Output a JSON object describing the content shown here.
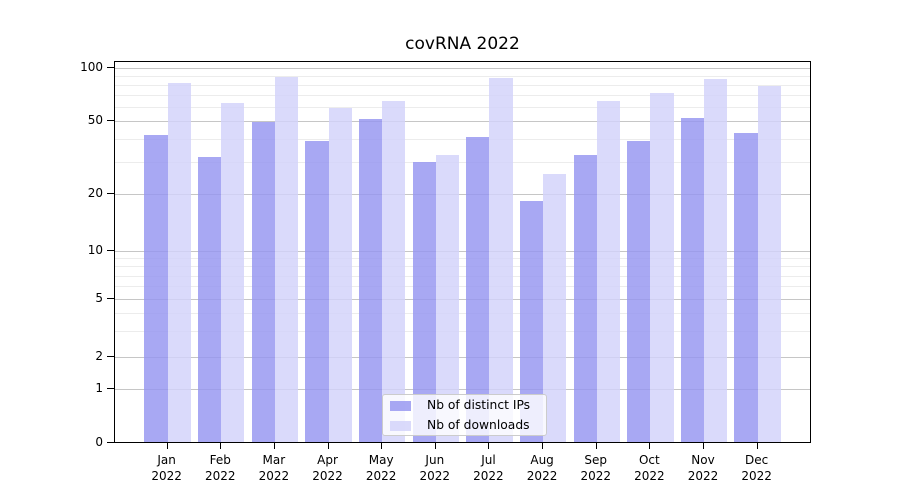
{
  "title": "covRNA 2022",
  "colors": {
    "ips_bar": "#9595f0",
    "downloads_bar": "#d2d2fa",
    "grid_major": "#c6c6c6",
    "grid_minor": "#ececec",
    "axis": "#000000"
  },
  "legend": {
    "items": [
      {
        "label": "Nb of distinct IPs",
        "series": "ips"
      },
      {
        "label": "Nb of downloads",
        "series": "downloads"
      }
    ]
  },
  "y_axis": {
    "tick_labels": [
      "100",
      "50",
      "20",
      "10",
      "5",
      "2",
      "1",
      "0"
    ]
  },
  "chart_data": {
    "type": "bar",
    "title": "covRNA 2022",
    "categories": [
      "Jan 2022",
      "Feb 2022",
      "Mar 2022",
      "Apr 2022",
      "May 2022",
      "Jun 2022",
      "Jul 2022",
      "Aug 2022",
      "Sep 2022",
      "Oct 2022",
      "Nov 2022",
      "Dec 2022"
    ],
    "series": [
      {
        "key": "ips",
        "name": "Nb of distinct IPs",
        "values": [
          41,
          31,
          48,
          38,
          50,
          29,
          40,
          18,
          32,
          38,
          51,
          42
        ]
      },
      {
        "key": "downloads",
        "name": "Nb of downloads",
        "values": [
          80,
          62,
          87,
          58,
          63,
          32,
          85,
          25,
          63,
          70,
          84,
          77
        ]
      }
    ],
    "xlabel": "",
    "ylabel": "",
    "yscale": "log-with-zero",
    "y_major_ticks": [
      0,
      1,
      2,
      5,
      10,
      20,
      50,
      100
    ],
    "y_minor_ticks": [
      3,
      4,
      6,
      7,
      8,
      9,
      30,
      40,
      60,
      70,
      80,
      90
    ],
    "ylim": [
      0,
      105
    ],
    "grid": true,
    "legend_position": "lower center"
  }
}
